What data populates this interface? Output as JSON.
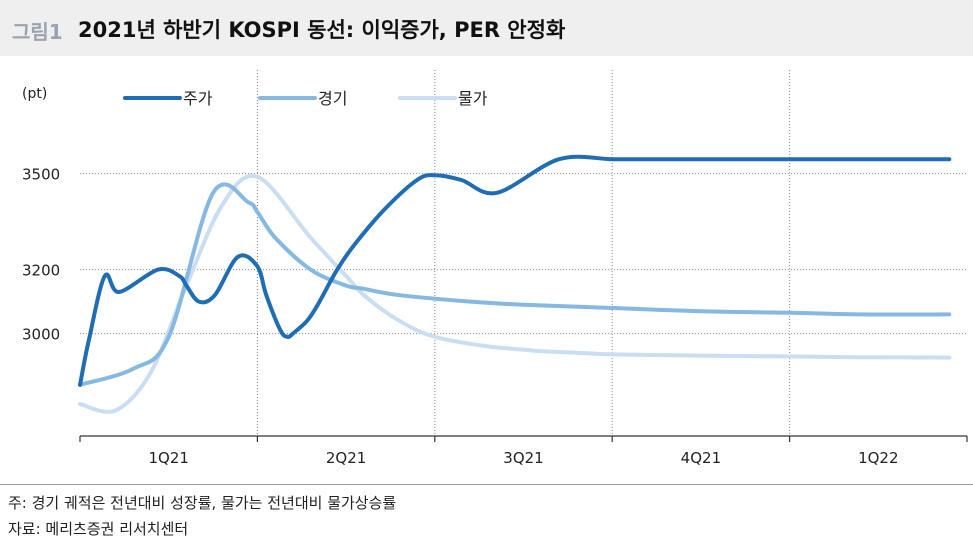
{
  "header": {
    "figure_label": "그림1",
    "title": "2021년 하반기 KOSPI 동선: 이익증가, PER 안정화"
  },
  "chart_data": {
    "type": "line",
    "y_unit": "(pt)",
    "categories": [
      "1Q21",
      "2Q21",
      "3Q21",
      "4Q21",
      "1Q22"
    ],
    "y_ticks": [
      3500,
      3200,
      3000
    ],
    "ylim": [
      2680,
      3730
    ],
    "grid": true,
    "legend_position": "top",
    "series": [
      {
        "name": "주가",
        "color": "#1f6db5",
        "width": 4,
        "x": [
          0.0,
          0.05,
          0.14,
          0.22,
          0.44,
          0.56,
          0.6,
          0.67,
          0.76,
          0.89,
          1.0,
          1.05,
          1.13,
          1.17,
          1.2,
          1.28,
          1.34,
          1.45,
          1.55,
          1.72,
          1.9,
          2.0,
          2.15,
          2.35,
          2.7,
          3.0,
          3.2,
          3.38,
          3.5,
          3.6,
          3.78,
          3.9,
          4.2,
          4.5,
          4.9
        ],
        "values": [
          2840,
          2980,
          3180,
          3130,
          3200,
          3180,
          3150,
          3100,
          3120,
          3240,
          3210,
          3120,
          3010,
          2990,
          3000,
          3040,
          3090,
          3200,
          3280,
          3390,
          3480,
          3495,
          3480,
          3440,
          3545,
          3545,
          3545,
          3545,
          3545,
          3545,
          3545,
          3545,
          3545,
          3545,
          3545
        ]
      },
      {
        "name": "경기",
        "color": "#85b8e2",
        "width": 4,
        "x": [
          0.0,
          0.3,
          0.5,
          0.75,
          0.95,
          1.0,
          1.1,
          1.3,
          1.5,
          1.6,
          1.8,
          2.2,
          2.5,
          3.0,
          3.5,
          4.0,
          4.4,
          4.9
        ],
        "values": [
          2840,
          2890,
          2990,
          3440,
          3410,
          3380,
          3300,
          3200,
          3150,
          3140,
          3120,
          3100,
          3090,
          3080,
          3070,
          3065,
          3060,
          3060
        ]
      },
      {
        "name": "물가",
        "color": "#c9def2",
        "width": 4,
        "x": [
          0.0,
          0.2,
          0.4,
          0.6,
          0.8,
          1.0,
          1.3,
          1.5,
          1.6,
          1.8,
          2.0,
          2.3,
          2.5,
          2.6,
          2.8,
          3.0,
          3.4,
          3.7,
          4.1,
          4.4,
          4.9
        ],
        "values": [
          2780,
          2760,
          2880,
          3150,
          3400,
          3490,
          3300,
          3180,
          3120,
          3040,
          2990,
          2960,
          2950,
          2945,
          2940,
          2935,
          2932,
          2930,
          2928,
          2926,
          2925
        ]
      }
    ]
  },
  "notes": {
    "footnote": "주: 경기 궤적은 전년대비 성장률, 물가는 전년대비 물가상승률",
    "source": "자료: 메리츠증권 리서치센터"
  }
}
